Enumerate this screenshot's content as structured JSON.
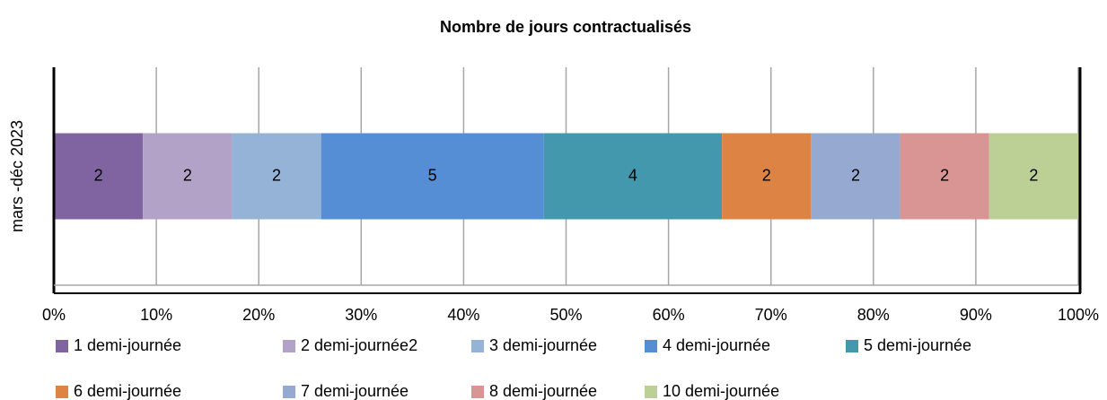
{
  "chart_data": {
    "type": "bar",
    "orientation": "horizontal",
    "stacked": "percent",
    "title": "Nombre de jours contractualisés",
    "categories": [
      "mars -déc 2023"
    ],
    "series": [
      {
        "name": "1 demi-journée",
        "color": "#8064a2",
        "values": [
          2
        ]
      },
      {
        "name": "2 demi-journée2",
        "color": "#b3a2c7",
        "values": [
          2
        ]
      },
      {
        "name": "3 demi-journée",
        "color": "#95b3d7",
        "values": [
          2
        ]
      },
      {
        "name": "4 demi-journée",
        "color": "#558ed5",
        "values": [
          5
        ]
      },
      {
        "name": "5 demi-journée",
        "color": "#4398ae",
        "values": [
          4
        ]
      },
      {
        "name": "6 demi-journée",
        "color": "#dd8444",
        "values": [
          2
        ]
      },
      {
        "name": "7 demi-journée",
        "color": "#95a9d1",
        "values": [
          2
        ]
      },
      {
        "name": "8 demi-journée",
        "color": "#d99594",
        "values": [
          2
        ]
      },
      {
        "name": "10 demi-journée",
        "color": "#bcd095",
        "values": [
          2
        ]
      }
    ],
    "xlim": [
      0,
      100
    ],
    "xticks": [
      {
        "value": 0,
        "label": "0%"
      },
      {
        "value": 10,
        "label": "10%"
      },
      {
        "value": 20,
        "label": "20%"
      },
      {
        "value": 30,
        "label": "30%"
      },
      {
        "value": 40,
        "label": "40%"
      },
      {
        "value": 50,
        "label": "50%"
      },
      {
        "value": 60,
        "label": "60%"
      },
      {
        "value": 70,
        "label": "70%"
      },
      {
        "value": 80,
        "label": "80%"
      },
      {
        "value": 90,
        "label": "90%"
      },
      {
        "value": 100,
        "label": "100%"
      }
    ],
    "grid": true,
    "legend": "bottom"
  }
}
